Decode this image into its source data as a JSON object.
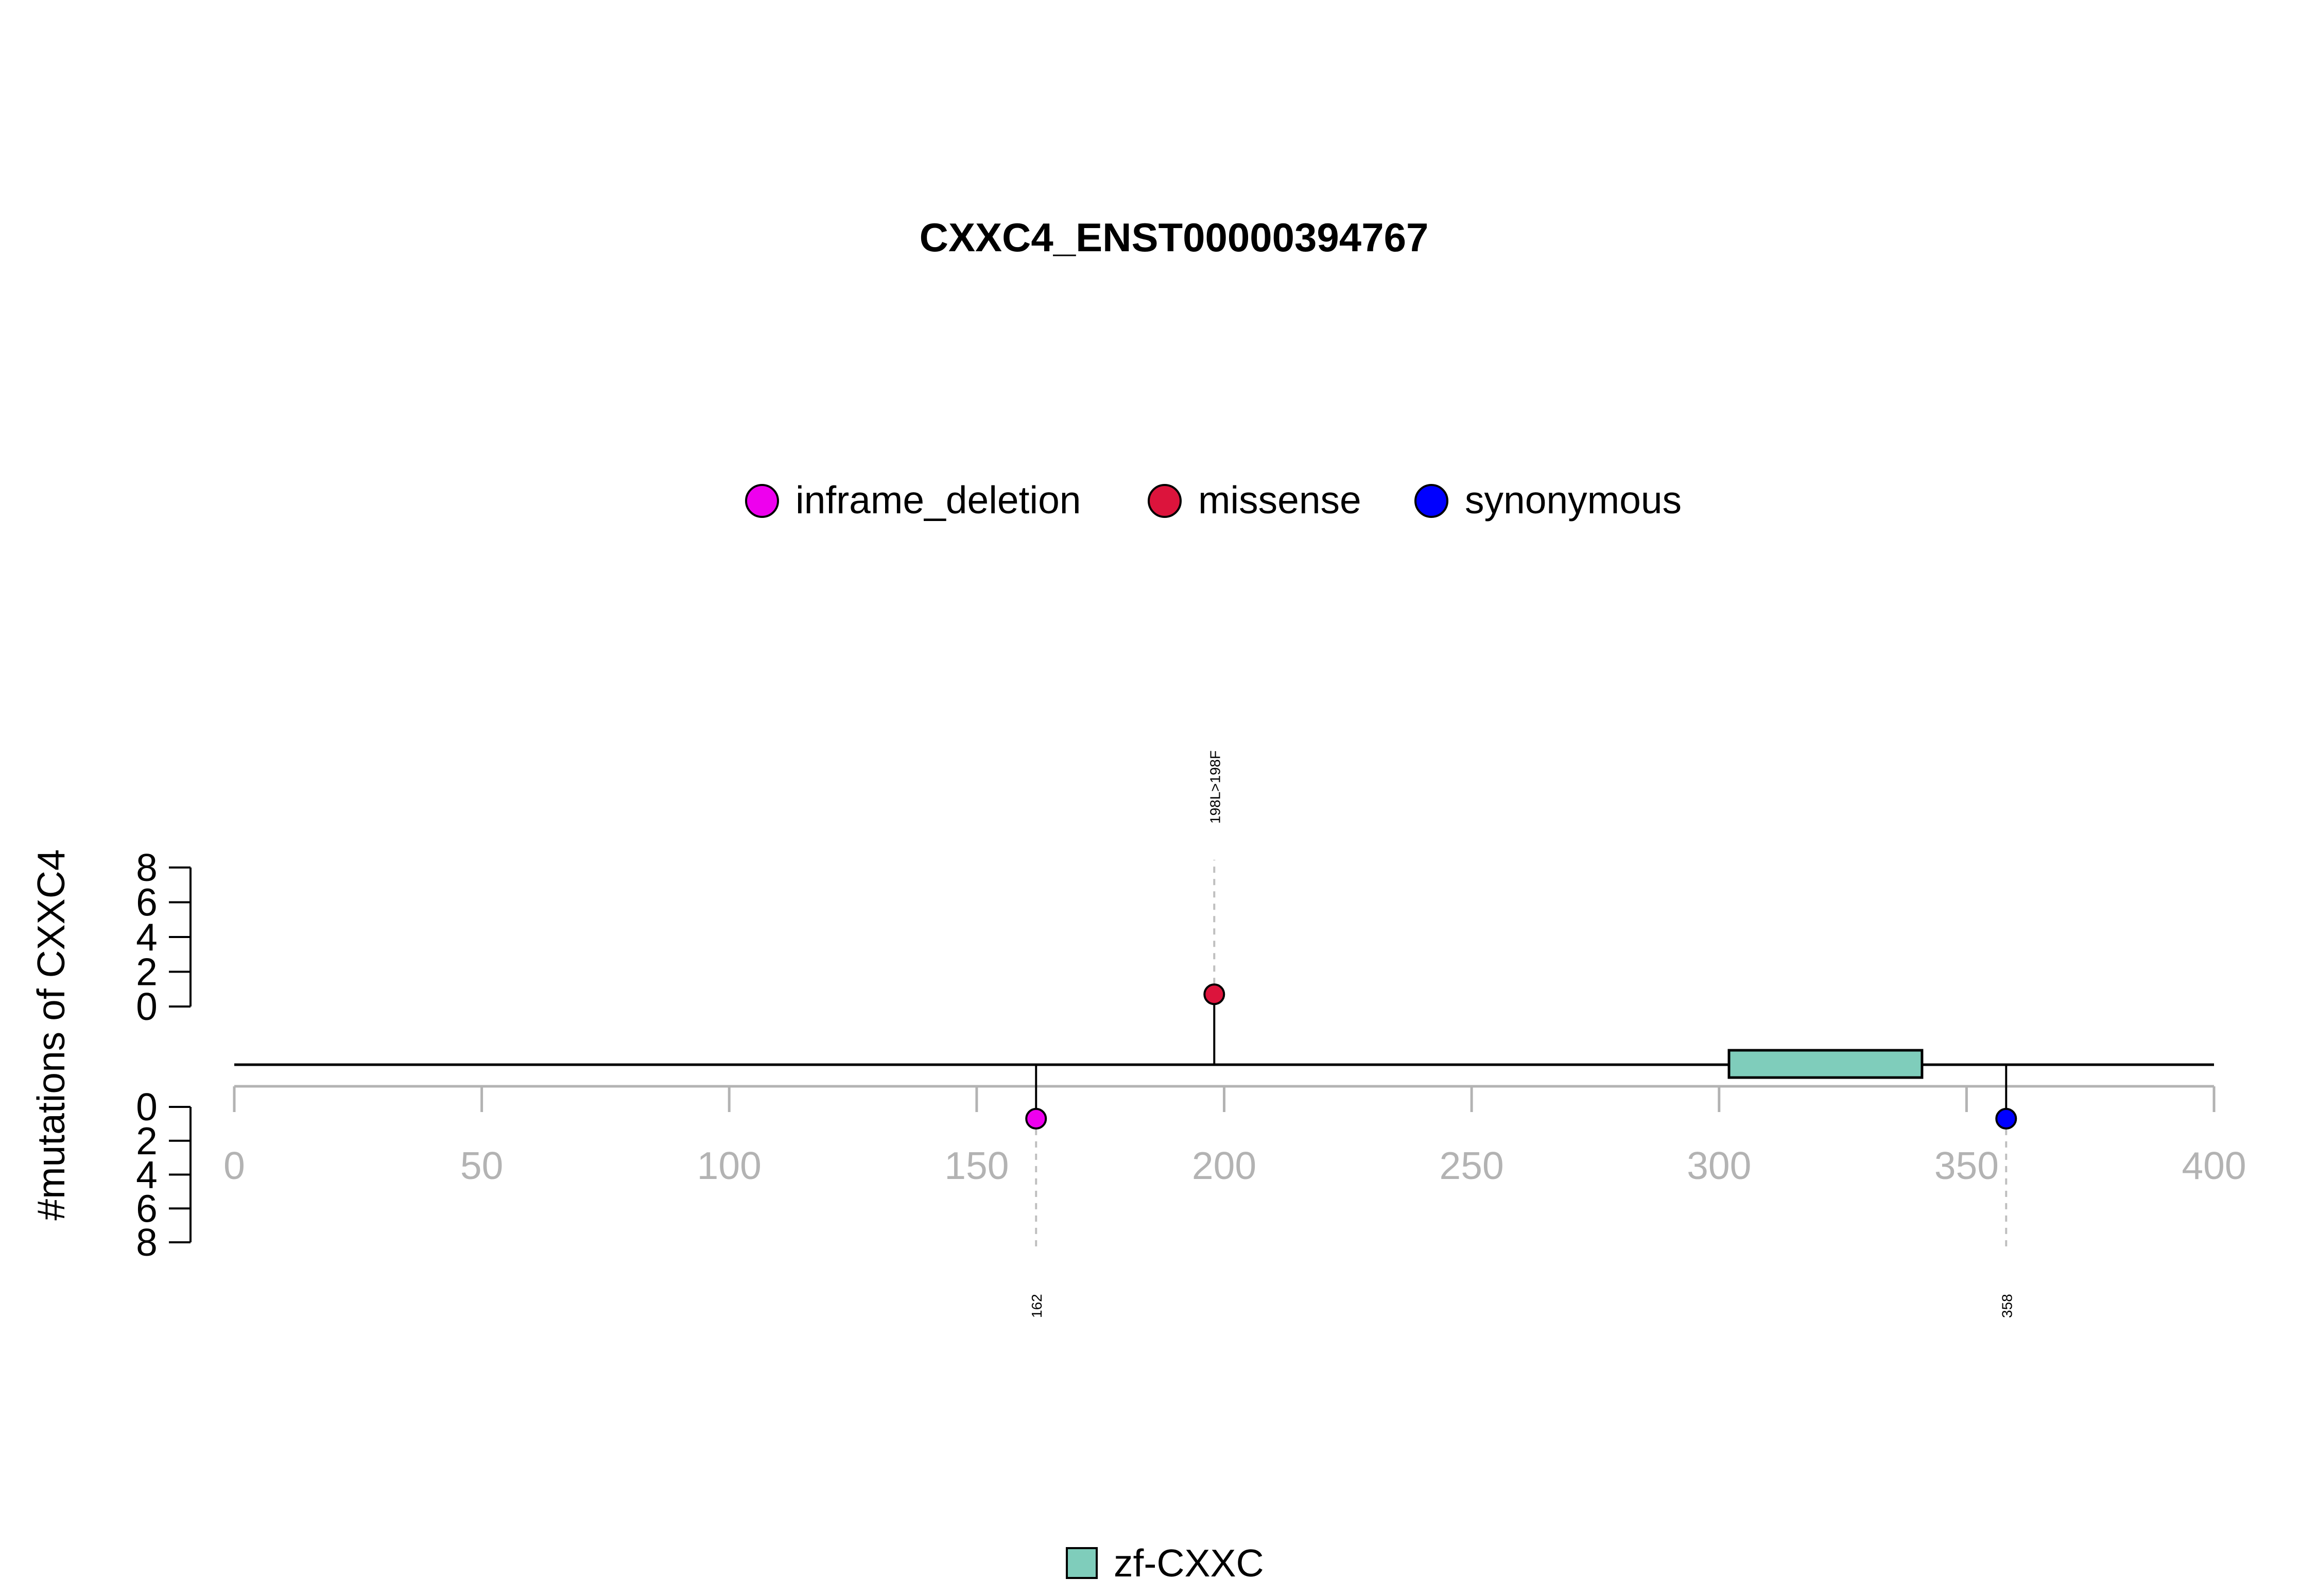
{
  "chart_data": {
    "type": "lollipop",
    "title": "CXXC4_ENST00000394767",
    "ylabel": "#mutations of CXXC4",
    "xlim": [
      0,
      400
    ],
    "x_ticks": [
      0,
      50,
      100,
      150,
      200,
      250,
      300,
      350,
      400
    ],
    "y_ticks_top": [
      0,
      2,
      4,
      6,
      8
    ],
    "y_ticks_bottom": [
      0,
      2,
      4,
      6,
      8
    ],
    "ylim": [
      0,
      8
    ],
    "legend": {
      "placement": "top-center",
      "items": [
        {
          "label": "inframe_deletion",
          "color": "#EE00EE"
        },
        {
          "label": "missense",
          "color": "#DC143C"
        },
        {
          "label": "synonymous",
          "color": "#0000FF"
        }
      ]
    },
    "mutations": [
      {
        "position": 162,
        "count": 1,
        "type": "inframe_deletion",
        "side": "bottom",
        "label": "162",
        "color": "#EE00EE"
      },
      {
        "position": 198,
        "count": 1,
        "type": "missense",
        "side": "top",
        "label": "198L>198F",
        "color": "#DC143C"
      },
      {
        "position": 358,
        "count": 1,
        "type": "synonymous",
        "side": "bottom",
        "label": "358",
        "color": "#0000FF"
      }
    ],
    "domains": [
      {
        "name": "zf-CXXC",
        "start": 302,
        "end": 341,
        "color": "#7FCDBB"
      }
    ],
    "domain_legend": {
      "placement": "bottom-center"
    }
  }
}
